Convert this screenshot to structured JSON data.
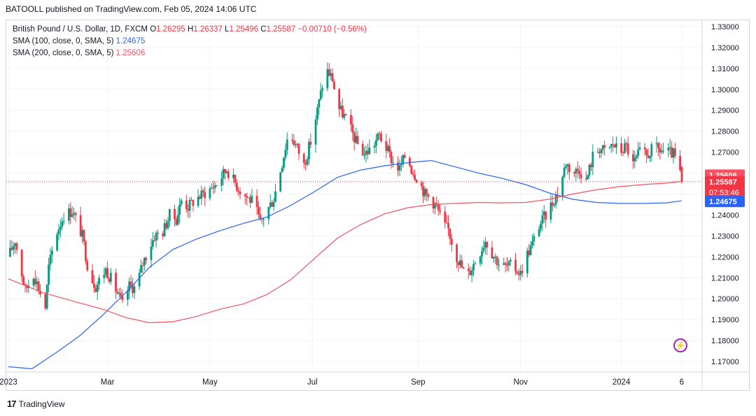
{
  "publisher": "BATOOLL published on TradingView.com, Feb 05, 2024 14:06 UTC",
  "legend": {
    "symbol": "British Pound / U.S. Dollar, 1D, FXCM",
    "ohlc": [
      {
        "k": "O",
        "v": "1.26295"
      },
      {
        "k": "H",
        "v": "1.26337"
      },
      {
        "k": "L",
        "v": "1.25496"
      },
      {
        "k": "C",
        "v": "1.25587"
      }
    ],
    "change": "−0.00710 (−0.56%)",
    "sma100_label": "SMA (100, close, 0, SMA, 5)",
    "sma100_value": "1.24675",
    "sma200_label": "SMA (200, close, 0, SMA, 5)",
    "sma200_value": "1.25606"
  },
  "price_tags": {
    "sma200": "1.25606",
    "close": "1.25587",
    "countdown": "07:53:46",
    "sma100": "1.24675"
  },
  "footer": "TradingView",
  "colors": {
    "up": "#089981",
    "down": "#f23645",
    "sma100": "#2962ff",
    "sma200": "#f7525f",
    "grid": "#f0f3fa"
  },
  "chart_data": {
    "type": "candlestick",
    "instrument": "GBP/USD",
    "timeframe": "1D",
    "ylim": [
      1.165,
      1.333
    ],
    "yticks": [
      "1.33000",
      "1.32000",
      "1.31000",
      "1.30000",
      "1.29000",
      "1.28000",
      "1.27000",
      "1.26000",
      "1.25000",
      "1.24000",
      "1.23000",
      "1.22000",
      "1.21000",
      "1.20000",
      "1.19000",
      "1.18000",
      "1.17000"
    ],
    "xticks": [
      "2023",
      "Mar",
      "May",
      "Jul",
      "Sep",
      "Nov",
      "2024",
      "6"
    ],
    "xtick_days": [
      0,
      59,
      120,
      181,
      244,
      305,
      365,
      401
    ],
    "last_day": 401,
    "anchors": [
      [
        0,
        1.22
      ],
      [
        4,
        1.228
      ],
      [
        10,
        1.204
      ],
      [
        15,
        1.212
      ],
      [
        22,
        1.196
      ],
      [
        24,
        1.215
      ],
      [
        28,
        1.23
      ],
      [
        33,
        1.24
      ],
      [
        38,
        1.242
      ],
      [
        44,
        1.23
      ],
      [
        48,
        1.212
      ],
      [
        52,
        1.206
      ],
      [
        58,
        1.214
      ],
      [
        62,
        1.208
      ],
      [
        68,
        1.197
      ],
      [
        72,
        1.206
      ],
      [
        76,
        1.205
      ],
      [
        80,
        1.217
      ],
      [
        87,
        1.23
      ],
      [
        92,
        1.232
      ],
      [
        96,
        1.24
      ],
      [
        100,
        1.238
      ],
      [
        103,
        1.247
      ],
      [
        107,
        1.244
      ],
      [
        112,
        1.248
      ],
      [
        118,
        1.251
      ],
      [
        124,
        1.255
      ],
      [
        130,
        1.262
      ],
      [
        136,
        1.254
      ],
      [
        140,
        1.25
      ],
      [
        146,
        1.246
      ],
      [
        150,
        1.236
      ],
      [
        154,
        1.242
      ],
      [
        158,
        1.248
      ],
      [
        163,
        1.265
      ],
      [
        167,
        1.28
      ],
      [
        172,
        1.272
      ],
      [
        176,
        1.264
      ],
      [
        180,
        1.275
      ],
      [
        184,
        1.29
      ],
      [
        189,
        1.31
      ],
      [
        193,
        1.305
      ],
      [
        196,
        1.292
      ],
      [
        201,
        1.286
      ],
      [
        207,
        1.275
      ],
      [
        212,
        1.269
      ],
      [
        216,
        1.272
      ],
      [
        221,
        1.278
      ],
      [
        225,
        1.272
      ],
      [
        229,
        1.265
      ],
      [
        233,
        1.262
      ],
      [
        237,
        1.27
      ],
      [
        240,
        1.262
      ],
      [
        244,
        1.257
      ],
      [
        248,
        1.25
      ],
      [
        251,
        1.248
      ],
      [
        255,
        1.244
      ],
      [
        259,
        1.235
      ],
      [
        262,
        1.233
      ],
      [
        266,
        1.222
      ],
      [
        270,
        1.215
      ],
      [
        273,
        1.21
      ],
      [
        276,
        1.215
      ],
      [
        280,
        1.221
      ],
      [
        284,
        1.228
      ],
      [
        288,
        1.222
      ],
      [
        292,
        1.217
      ],
      [
        296,
        1.215
      ],
      [
        300,
        1.216
      ],
      [
        305,
        1.212
      ],
      [
        308,
        1.22
      ],
      [
        312,
        1.226
      ],
      [
        316,
        1.235
      ],
      [
        320,
        1.24
      ],
      [
        324,
        1.246
      ],
      [
        328,
        1.252
      ],
      [
        332,
        1.265
      ],
      [
        336,
        1.26
      ],
      [
        340,
        1.262
      ],
      [
        344,
        1.256
      ],
      [
        348,
        1.268
      ],
      [
        352,
        1.272
      ],
      [
        356,
        1.27
      ],
      [
        360,
        1.274
      ],
      [
        364,
        1.27
      ],
      [
        368,
        1.273
      ],
      [
        372,
        1.264
      ],
      [
        376,
        1.27
      ],
      [
        380,
        1.268
      ],
      [
        384,
        1.272
      ],
      [
        388,
        1.271
      ],
      [
        392,
        1.27
      ],
      [
        396,
        1.269
      ],
      [
        399,
        1.263
      ],
      [
        401,
        1.2559
      ]
    ],
    "sma100": [
      [
        0,
        1.1675
      ],
      [
        14,
        1.1665
      ],
      [
        28,
        1.174
      ],
      [
        42,
        1.182
      ],
      [
        56,
        1.192
      ],
      [
        70,
        1.203
      ],
      [
        84,
        1.215
      ],
      [
        98,
        1.2235
      ],
      [
        112,
        1.2285
      ],
      [
        126,
        1.2325
      ],
      [
        140,
        1.236
      ],
      [
        154,
        1.239
      ],
      [
        168,
        1.2445
      ],
      [
        182,
        1.251
      ],
      [
        196,
        1.258
      ],
      [
        210,
        1.2615
      ],
      [
        224,
        1.2635
      ],
      [
        238,
        1.265
      ],
      [
        252,
        1.266
      ],
      [
        266,
        1.263
      ],
      [
        280,
        1.26
      ],
      [
        294,
        1.2575
      ],
      [
        308,
        1.2545
      ],
      [
        322,
        1.2505
      ],
      [
        336,
        1.2475
      ],
      [
        350,
        1.246
      ],
      [
        364,
        1.2455
      ],
      [
        378,
        1.2455
      ],
      [
        392,
        1.2458
      ],
      [
        401,
        1.24675
      ]
    ],
    "sma200": [
      [
        0,
        1.2095
      ],
      [
        20,
        1.203
      ],
      [
        40,
        1.1985
      ],
      [
        56,
        1.195
      ],
      [
        70,
        1.191
      ],
      [
        84,
        1.1885
      ],
      [
        98,
        1.189
      ],
      [
        112,
        1.1915
      ],
      [
        126,
        1.195
      ],
      [
        140,
        1.1975
      ],
      [
        154,
        1.202
      ],
      [
        168,
        1.209
      ],
      [
        182,
        1.219
      ],
      [
        196,
        1.229
      ],
      [
        210,
        1.2355
      ],
      [
        224,
        1.2405
      ],
      [
        238,
        1.2435
      ],
      [
        252,
        1.245
      ],
      [
        266,
        1.2455
      ],
      [
        280,
        1.246
      ],
      [
        294,
        1.2458
      ],
      [
        308,
        1.246
      ],
      [
        322,
        1.2475
      ],
      [
        336,
        1.25
      ],
      [
        350,
        1.252
      ],
      [
        364,
        1.2535
      ],
      [
        378,
        1.2545
      ],
      [
        392,
        1.2552
      ],
      [
        401,
        1.25606
      ]
    ]
  }
}
